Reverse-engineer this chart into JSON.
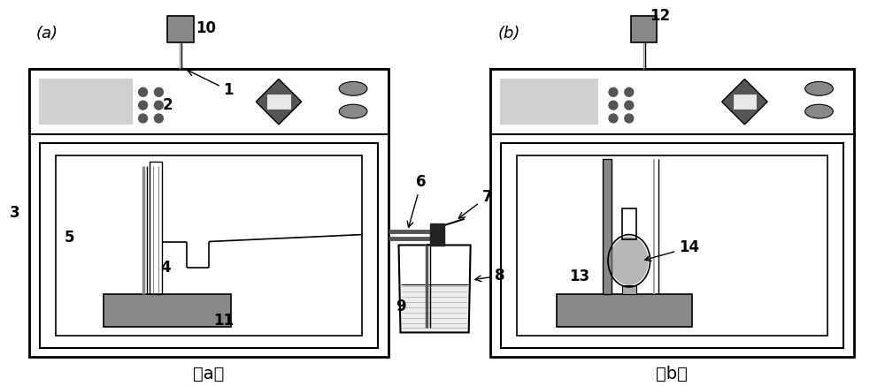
{
  "bg_color": "#ffffff",
  "line_color": "#000000",
  "gray_light": "#d0d0d0",
  "gray_medium": "#888888",
  "gray_dark": "#555555",
  "fig_width": 10.0,
  "fig_height": 4.37,
  "label_a_bottom": "(a)",
  "label_b_bottom": "(b)"
}
